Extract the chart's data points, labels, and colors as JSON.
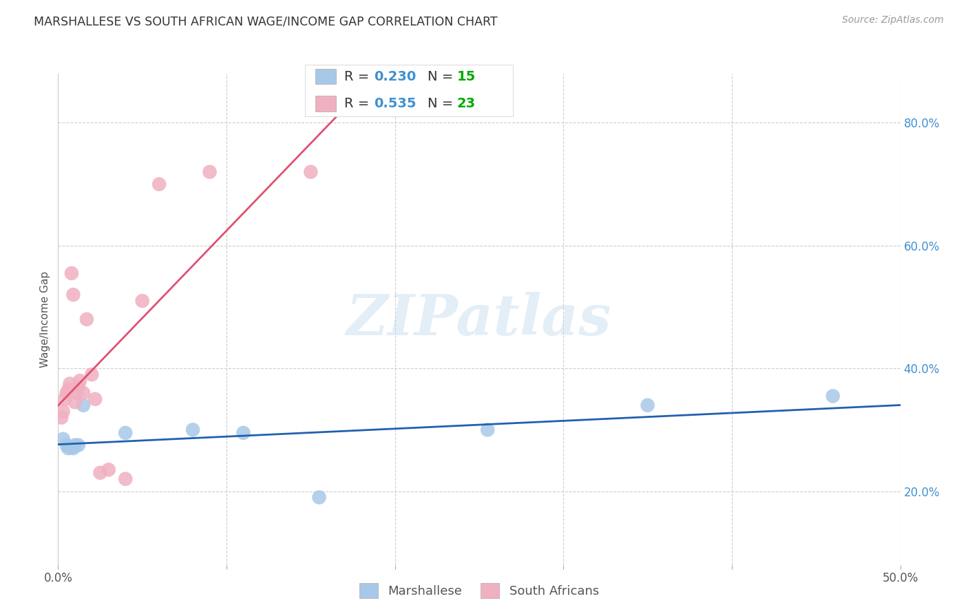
{
  "title": "MARSHALLESE VS SOUTH AFRICAN WAGE/INCOME GAP CORRELATION CHART",
  "source": "Source: ZipAtlas.com",
  "ylabel": "Wage/Income Gap",
  "xlim": [
    0.0,
    0.5
  ],
  "ylim": [
    0.08,
    0.88
  ],
  "yticks": [
    0.2,
    0.4,
    0.6,
    0.8
  ],
  "xticks": [
    0.0,
    0.1,
    0.2,
    0.3,
    0.4,
    0.5
  ],
  "marshallese": {
    "label": "Marshallese",
    "R": 0.23,
    "N": 15,
    "color": "#a8c8e8",
    "line_color": "#2060b0",
    "x": [
      0.003,
      0.005,
      0.006,
      0.008,
      0.009,
      0.01,
      0.012,
      0.015,
      0.04,
      0.08,
      0.11,
      0.155,
      0.255,
      0.35,
      0.46
    ],
    "y": [
      0.285,
      0.275,
      0.27,
      0.272,
      0.27,
      0.275,
      0.275,
      0.34,
      0.295,
      0.3,
      0.295,
      0.19,
      0.3,
      0.34,
      0.355
    ]
  },
  "south_african": {
    "label": "South Africans",
    "R": 0.535,
    "N": 23,
    "color": "#f0b0c0",
    "line_color": "#e05070",
    "x": [
      0.002,
      0.003,
      0.004,
      0.005,
      0.006,
      0.007,
      0.008,
      0.009,
      0.01,
      0.011,
      0.012,
      0.013,
      0.015,
      0.017,
      0.02,
      0.022,
      0.025,
      0.03,
      0.04,
      0.05,
      0.06,
      0.09,
      0.15
    ],
    "y": [
      0.32,
      0.33,
      0.35,
      0.36,
      0.365,
      0.375,
      0.555,
      0.52,
      0.345,
      0.36,
      0.37,
      0.38,
      0.36,
      0.48,
      0.39,
      0.35,
      0.23,
      0.235,
      0.22,
      0.51,
      0.7,
      0.72,
      0.72
    ]
  },
  "watermark": "ZIPatlas",
  "background_color": "#ffffff",
  "grid_color": "#cccccc",
  "legend_R_color": "#4090d0",
  "legend_N_color": "#00aa00"
}
